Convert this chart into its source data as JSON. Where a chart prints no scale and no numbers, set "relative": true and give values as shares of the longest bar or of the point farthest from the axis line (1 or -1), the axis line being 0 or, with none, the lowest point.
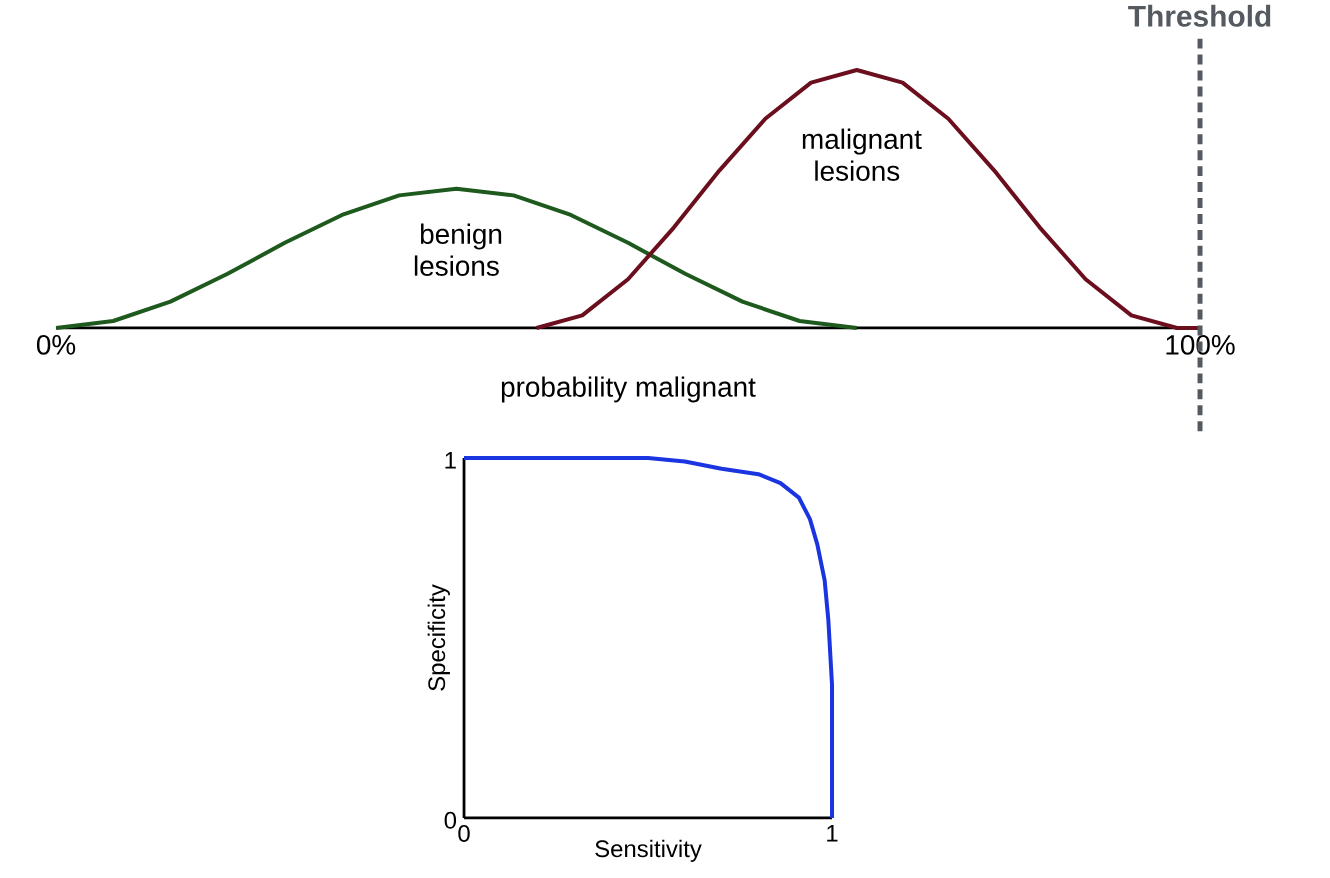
{
  "chart_data": [
    {
      "type": "line",
      "relative": true,
      "xlabel": "probability malignant",
      "xlim": [
        0,
        100
      ],
      "xticks": [
        {
          "value": 0,
          "label": "0%"
        },
        {
          "value": 100,
          "label": "100%"
        }
      ],
      "legend": false,
      "grid": false,
      "tick_labels": "x",
      "series": [
        {
          "name": "benign lesions",
          "color": "#1e5a1e",
          "x": [
            0,
            5,
            10,
            15,
            20,
            25,
            30,
            35,
            40,
            45,
            50,
            55,
            60,
            65,
            70
          ],
          "values": [
            0,
            0.027,
            0.102,
            0.21,
            0.33,
            0.438,
            0.514,
            0.54,
            0.514,
            0.438,
            0.33,
            0.21,
            0.102,
            0.027,
            0
          ]
        },
        {
          "name": "malignant lesions",
          "color": "#6b0f1e",
          "x": [
            42,
            46,
            50,
            54,
            58,
            62,
            66,
            70,
            74,
            78,
            82,
            86,
            90,
            94,
            98,
            100
          ],
          "values": [
            0,
            0.049,
            0.189,
            0.389,
            0.611,
            0.811,
            0.951,
            1,
            0.951,
            0.811,
            0.611,
            0.389,
            0.189,
            0.049,
            0,
            0
          ]
        }
      ],
      "ref_lines": [
        {
          "axis": "x",
          "value": 100,
          "label": "Threshold",
          "color": "#555a60",
          "line_style": "dashed"
        }
      ]
    },
    {
      "type": "line",
      "xlabel": "Sensitivity",
      "ylabel": "Specificity",
      "xlim": [
        0,
        1
      ],
      "ylim": [
        0,
        1
      ],
      "xticks": [
        0,
        1
      ],
      "yticks": [
        0,
        1
      ],
      "legend": false,
      "grid": false,
      "series": [
        {
          "color": "#1a35e0",
          "x": [
            0,
            0.5,
            0.6,
            0.7,
            0.8,
            0.86,
            0.91,
            0.94,
            0.96,
            0.98,
            0.99,
            1,
            1
          ],
          "values": [
            1,
            1,
            0.99,
            0.97,
            0.955,
            0.93,
            0.89,
            0.83,
            0.76,
            0.66,
            0.55,
            0.37,
            0
          ]
        }
      ]
    }
  ]
}
